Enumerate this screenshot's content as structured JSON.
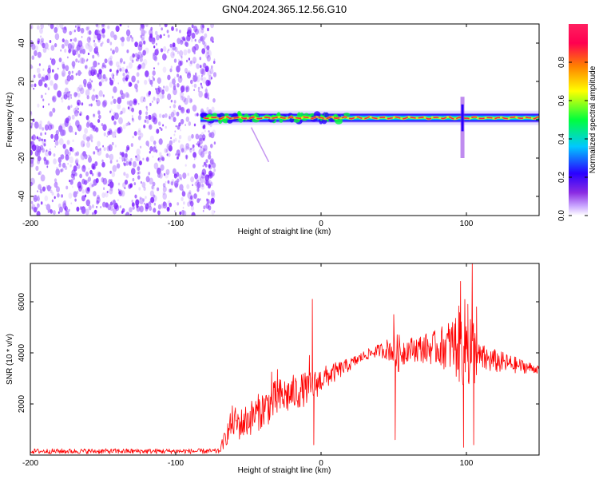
{
  "figure_title": "GN04.2024.365.12.56.G10",
  "colors": {
    "snr_line": "#ff0000",
    "axis": "#000000",
    "spectrogram_noise": "#7a1cff",
    "colorbar_stops": [
      "#ffffff",
      "#8a2be2",
      "#2a00ff",
      "#00c8ff",
      "#00ff3c",
      "#ffff00",
      "#ff8000",
      "#ff0050",
      "#ff2060"
    ]
  },
  "chart_data": [
    {
      "type": "heatmap",
      "title": "GN04.2024.365.12.56.G10",
      "xlabel": "Height of straight line (km)",
      "ylabel": "Frequency (Hz)",
      "xlim": [
        -200,
        150
      ],
      "ylim": [
        -50,
        50
      ],
      "xticks": [
        "-200",
        "-100",
        "0",
        "100"
      ],
      "yticks": [
        "40",
        "20",
        "0",
        "-20",
        "-40"
      ],
      "colorbar": {
        "label": "Normalized spectral amplitude",
        "range": [
          0,
          1
        ],
        "ticks": [
          "0.8",
          "0.6",
          "0.4",
          "0.2",
          "0.0"
        ]
      },
      "features": {
        "noise_region_x": [
          -200,
          -73
        ],
        "signal_band_x": [
          -83,
          150
        ],
        "signal_band_center_hz": 1,
        "spike_x": 97,
        "spike_freq_range_hz": [
          -20,
          12
        ]
      }
    },
    {
      "type": "line",
      "xlabel": "Height of straight line (km)",
      "ylabel": "SNR (10 * v/v)",
      "xlim": [
        -200,
        150
      ],
      "ylim": [
        0,
        7500
      ],
      "xticks": [
        "-200",
        "-100",
        "0",
        "100"
      ],
      "yticks": [
        "6000",
        "4000",
        "2000"
      ],
      "envelope": {
        "x": [
          -200,
          -70,
          -61,
          -55,
          -40,
          -30,
          -15,
          -5,
          0,
          20,
          30,
          40,
          48,
          52,
          60,
          80,
          90,
          98,
          103,
          108,
          150
        ],
        "y": [
          150,
          150,
          1300,
          1200,
          1800,
          2200,
          2500,
          2700,
          2950,
          3550,
          3900,
          4100,
          4150,
          3950,
          4150,
          4200,
          4300,
          4350,
          4200,
          3800,
          3350
        ],
        "spread": [
          100,
          100,
          650,
          650,
          750,
          800,
          700,
          600,
          500,
          250,
          200,
          250,
          500,
          800,
          450,
          700,
          1100,
          1800,
          2000,
          600,
          150
        ]
      },
      "spikes": [
        {
          "x": -34,
          "y": 3250
        },
        {
          "x": -30,
          "y": 3350
        },
        {
          "x": -8,
          "y": 3900
        },
        {
          "x": -6,
          "y": 6100
        },
        {
          "x": -5,
          "y": 400
        },
        {
          "x": 50,
          "y": 5500
        },
        {
          "x": 51,
          "y": 600
        },
        {
          "x": 96,
          "y": 6800
        },
        {
          "x": 98,
          "y": 300
        },
        {
          "x": 101,
          "y": 5900
        },
        {
          "x": 104,
          "y": 7500
        },
        {
          "x": 105,
          "y": 400
        },
        {
          "x": 107,
          "y": 5800
        }
      ]
    }
  ]
}
